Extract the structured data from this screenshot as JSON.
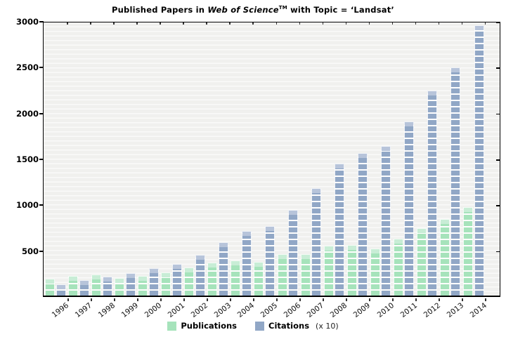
{
  "title": {
    "part1": "Published Papers in ",
    "italic": "Web of Science",
    "tm": "TM",
    "part2": " with Topic = ‘Landsat’"
  },
  "legend": {
    "items": [
      {
        "label": "Publications",
        "note": "",
        "swatch": "#a6e3bb"
      },
      {
        "label": "Citations",
        "note": "(x 10)",
        "swatch": "#91a7c6"
      }
    ]
  },
  "chart_data": {
    "type": "bar",
    "title": "Published Papers in Web of Science(TM) with Topic = 'Landsat'",
    "categories": [
      "1996",
      "1997",
      "1998",
      "1999",
      "2000",
      "2001",
      "2002",
      "2003",
      "2004",
      "2005",
      "2006",
      "2007",
      "2008",
      "2009",
      "2010",
      "2011",
      "2012",
      "2013",
      "2014"
    ],
    "series": [
      {
        "name": "Publications",
        "color": "#a6e3bb",
        "cap_color": "#c8edd6",
        "values": [
          185,
          215,
          228,
          195,
          218,
          258,
          310,
          362,
          385,
          372,
          455,
          455,
          545,
          555,
          520,
          627,
          740,
          840,
          975
        ]
      },
      {
        "name": "Citations (x 10)",
        "color": "#91a7c6",
        "cap_color": "#b7c4da",
        "values": [
          120,
          168,
          212,
          245,
          300,
          345,
          445,
          585,
          710,
          765,
          945,
          1180,
          1450,
          1565,
          1645,
          1915,
          2255,
          2510,
          2975
        ]
      }
    ],
    "xlabel": "",
    "ylabel": "",
    "ylim": [
      0,
      3000
    ],
    "yticks": [
      500,
      1000,
      1500,
      2000,
      2500,
      3000
    ],
    "grid": "horizontal-stripes",
    "legend_position": "bottom-center"
  }
}
